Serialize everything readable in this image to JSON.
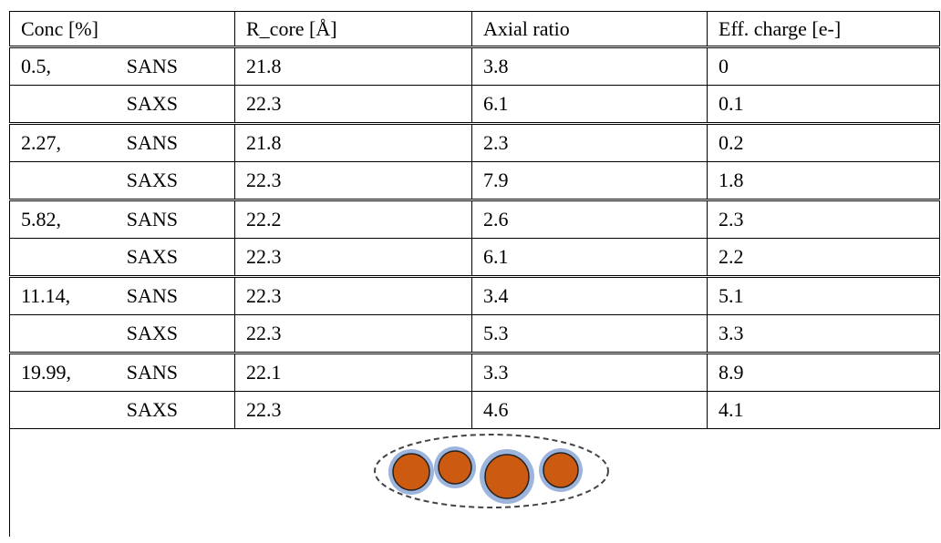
{
  "table": {
    "header": [
      "Conc [%]",
      "R_core [Å]",
      "Axial ratio",
      "Eff. charge [e-]"
    ],
    "groups": [
      {
        "conc": "0.5,",
        "rows": [
          {
            "method": "SANS",
            "values": [
              21.8,
              3.8,
              0
            ]
          },
          {
            "method": "SAXS",
            "values": [
              22.3,
              6.1,
              0.1
            ]
          }
        ]
      },
      {
        "conc": "2.27,",
        "rows": [
          {
            "method": "SANS",
            "values": [
              21.8,
              2.3,
              0.2
            ]
          },
          {
            "method": "SAXS",
            "values": [
              22.3,
              7.9,
              1.8
            ]
          }
        ]
      },
      {
        "conc": "5.82,",
        "rows": [
          {
            "method": "SANS",
            "values": [
              22.2,
              2.6,
              2.3
            ]
          },
          {
            "method": "SAXS",
            "values": [
              22.3,
              6.1,
              2.2
            ]
          }
        ]
      },
      {
        "conc": "11.14,",
        "rows": [
          {
            "method": "SANS",
            "values": [
              22.3,
              3.4,
              5.1
            ]
          },
          {
            "method": "SAXS",
            "values": [
              22.3,
              5.3,
              3.3
            ]
          }
        ]
      },
      {
        "conc": "19.99,",
        "rows": [
          {
            "method": "SANS",
            "values": [
              22.1,
              3.3,
              8.9
            ]
          },
          {
            "method": "SAXS",
            "values": [
              22.3,
              4.6,
              4.1
            ]
          }
        ]
      }
    ]
  }
}
